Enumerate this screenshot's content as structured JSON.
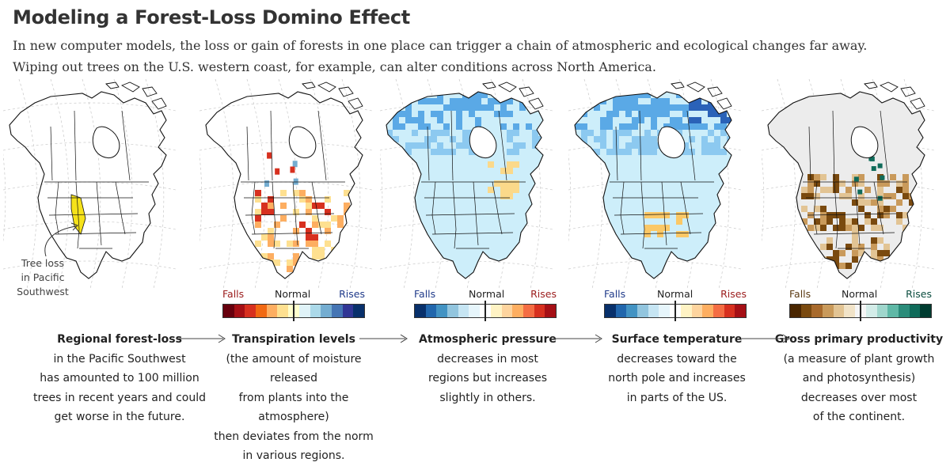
{
  "title": "Modeling a Forest-Loss Domino Effect",
  "intro": [
    "In new computer models, the loss or gain of forests in one place can trigger a chain of atmospheric and ecological changes far away.",
    "Wiping out trees on the U.S. western coast, for example, can alter conditions across North America."
  ],
  "annotation": [
    "Tree loss",
    "in Pacific",
    "Southwest"
  ],
  "panels": [
    {
      "name": "forest-loss",
      "caption": {
        "bold": "Regional forest-loss",
        "lines": [
          "in the Pacific Southwest",
          "has amounted to 100 million",
          "trees in recent years and could",
          "get worse in the future."
        ]
      }
    },
    {
      "name": "transpiration",
      "legend": {
        "left": "Falls",
        "center": "Normal",
        "right": "Rises",
        "left_color": "#9b1c1c",
        "right_color": "#1f3a8a",
        "colors": [
          "#67000d",
          "#a50f15",
          "#d7301f",
          "#f16913",
          "#fdae61",
          "#fee090",
          "#ffffcc",
          "#e0f3f8",
          "#abd9e9",
          "#74add1",
          "#4575b4",
          "#313695",
          "#08306b"
        ]
      },
      "caption": {
        "bold": "Transpiration levels",
        "lines": [
          "(the amount of moisture released",
          "from plants into the atmosphere)",
          "then deviates from the norm",
          "in various regions."
        ]
      }
    },
    {
      "name": "atmospheric-pressure",
      "legend": {
        "left": "Falls",
        "center": "Normal",
        "right": "Rises",
        "left_color": "#1f3a8a",
        "right_color": "#9b1c1c",
        "colors": [
          "#08306b",
          "#2166ac",
          "#4393c3",
          "#92c5de",
          "#c6e5f3",
          "#e6f5fb",
          "#ffffff",
          "#fff3c4",
          "#fdd49e",
          "#fdae61",
          "#f46d43",
          "#d7301f",
          "#a50f15"
        ]
      },
      "caption": {
        "bold": "Atmospheric pressure",
        "lines": [
          "decreases in most",
          "regions but increases",
          "slightly in others."
        ]
      }
    },
    {
      "name": "surface-temperature",
      "legend": {
        "left": "Falls",
        "center": "Normal",
        "right": "Rises",
        "left_color": "#1f3a8a",
        "right_color": "#9b1c1c",
        "colors": [
          "#08306b",
          "#2166ac",
          "#4393c3",
          "#92c5de",
          "#c6e5f3",
          "#e6f5fb",
          "#ffffff",
          "#fff3c4",
          "#fdd49e",
          "#fdae61",
          "#f46d43",
          "#d7301f",
          "#a50f15"
        ]
      },
      "caption": {
        "bold": "Surface temperature",
        "lines": [
          "decreases toward the",
          "north pole and increases",
          "in parts of the US."
        ]
      }
    },
    {
      "name": "gross-primary-productivity",
      "legend": {
        "left": "Falls",
        "center": "Normal",
        "right": "Rises",
        "left_color": "#5b3a12",
        "right_color": "#0b4d3f",
        "colors": [
          "#4a2600",
          "#7a4a0f",
          "#a86a2c",
          "#c99a5b",
          "#e2c494",
          "#f1e3c8",
          "#f5f5f5",
          "#d3ece8",
          "#9fd6cc",
          "#5fb8a6",
          "#2b8c7a",
          "#0f6b5a",
          "#003c30"
        ]
      },
      "caption": {
        "bold": "Gross primary productivity",
        "lines": [
          "(a measure of plant growth",
          "and photosynthesis)",
          "decreases over most",
          "of the continent."
        ]
      }
    }
  ],
  "colors": {
    "ink": "#111111",
    "graticule": "#c8c8c8",
    "loss_region": "#f5e21a",
    "map_bg_gray": "#ececec"
  }
}
